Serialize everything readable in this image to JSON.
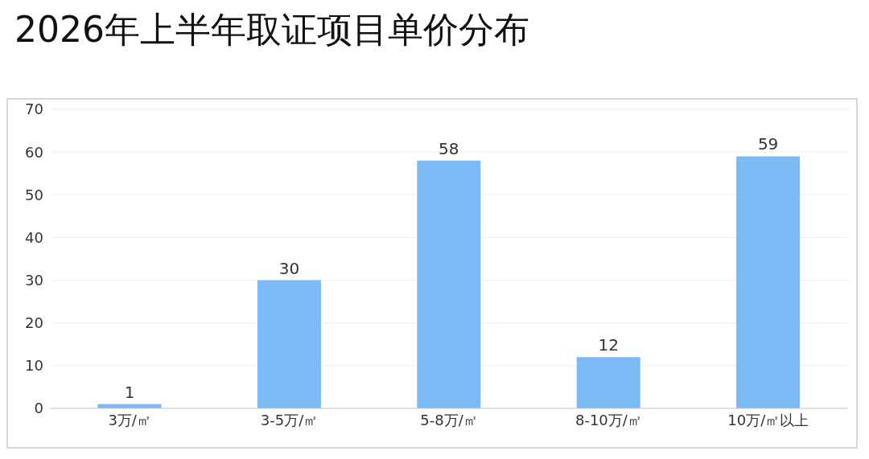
{
  "chart_data": {
    "type": "bar",
    "title": "2026年上半年取证项目单价分布",
    "categories": [
      "3万/㎡",
      "3-5万/㎡",
      "5-8万/㎡",
      "8-10万/㎡",
      "10万/㎡以上"
    ],
    "values": [
      1,
      30,
      58,
      12,
      59
    ],
    "color": "#7cb9f5",
    "ylim": [
      0,
      70
    ],
    "yticks": [
      0,
      10,
      20,
      30,
      40,
      50,
      60,
      70
    ],
    "grid": "y",
    "data_labels": true
  }
}
